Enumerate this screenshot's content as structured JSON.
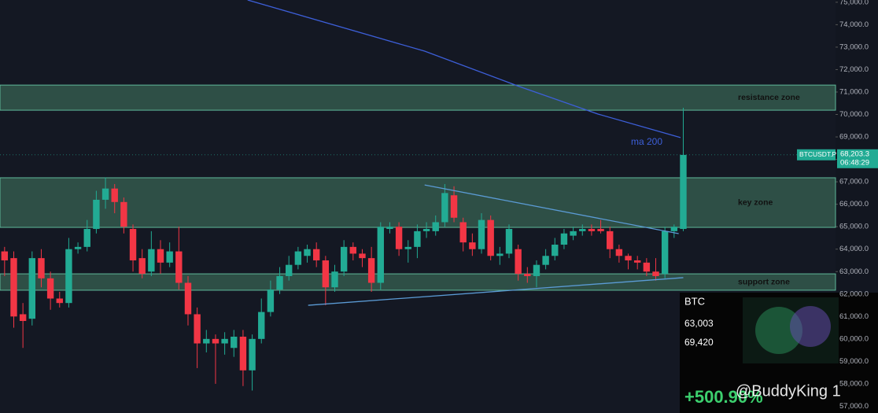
{
  "chart_data": {
    "type": "candlestick",
    "up_color": "#22ab94",
    "down_color": "#f23645",
    "open": [
      63900,
      63600,
      61100,
      60900,
      63600,
      62700,
      61800,
      61600,
      64000,
      64100,
      64900,
      66200,
      66700,
      66100,
      64900,
      63600,
      63000,
      64000,
      63400,
      63900,
      62500,
      61100,
      59800,
      60000,
      59800,
      59600,
      60100,
      58600,
      60000,
      61200,
      62200,
      62800,
      63300,
      63700,
      64000,
      63500,
      62300,
      63000,
      64100,
      63800,
      63600,
      62500,
      64900,
      65000,
      64000,
      64100,
      64800,
      64800,
      65200,
      66400,
      65200,
      64300,
      64000,
      65300,
      63700,
      63800,
      64000,
      62900,
      62800,
      63300,
      63700,
      64200,
      64600,
      64800,
      64900,
      64900,
      64800,
      64000,
      63700,
      63500,
      63400,
      63000,
      62900,
      64800,
      64900
    ],
    "high": [
      64100,
      63900,
      61600,
      63900,
      64000,
      63000,
      62100,
      64500,
      64300,
      65300,
      66600,
      67200,
      66900,
      66300,
      65100,
      64000,
      64800,
      64400,
      64300,
      65000,
      62800,
      61400,
      60400,
      60200,
      60300,
      60400,
      60400,
      60200,
      61800,
      62600,
      63200,
      63700,
      64100,
      64200,
      64300,
      63700,
      63300,
      64400,
      64300,
      64000,
      64100,
      65200,
      65200,
      65200,
      64400,
      65100,
      65200,
      65500,
      66900,
      66800,
      65400,
      64700,
      65600,
      65500,
      64100,
      65100,
      64200,
      63200,
      63500,
      64000,
      64500,
      64900,
      65000,
      65100,
      65100,
      65300,
      65000,
      64200,
      63800,
      63700,
      63600,
      63600,
      65000,
      65100,
      70300
    ],
    "low": [
      62800,
      60500,
      59600,
      60600,
      62300,
      61300,
      61400,
      61400,
      63800,
      63900,
      64700,
      65800,
      65600,
      64700,
      63000,
      62700,
      62800,
      62900,
      63200,
      62200,
      60600,
      58700,
      59400,
      58000,
      59300,
      59200,
      57900,
      57700,
      59800,
      61000,
      62000,
      62600,
      63100,
      63400,
      63200,
      61500,
      62100,
      62800,
      63500,
      63200,
      62100,
      62200,
      64700,
      63700,
      63400,
      63600,
      64500,
      64600,
      65000,
      65200,
      63900,
      63700,
      63800,
      63500,
      63300,
      63600,
      62600,
      62500,
      62300,
      63100,
      63500,
      64000,
      64400,
      64600,
      64600,
      64700,
      63600,
      63400,
      63100,
      63100,
      62800,
      62600,
      62700,
      64500,
      64800
    ],
    "close": [
      63500,
      61000,
      60800,
      63600,
      62700,
      61800,
      61600,
      64000,
      64100,
      64900,
      66200,
      66700,
      66100,
      65000,
      63500,
      62900,
      64000,
      63400,
      63900,
      62500,
      61100,
      59800,
      60000,
      59800,
      60000,
      60100,
      58600,
      60000,
      61200,
      62200,
      62800,
      63300,
      63900,
      64000,
      63500,
      62300,
      63000,
      64100,
      63800,
      63600,
      62500,
      65000,
      65000,
      64000,
      64100,
      64800,
      64900,
      65200,
      66500,
      65400,
      64300,
      64000,
      65300,
      63700,
      63800,
      64900,
      62900,
      62800,
      63300,
      63700,
      64200,
      64700,
      64800,
      64900,
      64800,
      64800,
      64000,
      63700,
      63500,
      63400,
      63000,
      62800,
      64800,
      65000,
      68200
    ],
    "xlim": [
      -0.5,
      90.6
    ],
    "ylim": [
      56700,
      75100
    ],
    "yticks": [
      {
        "value": 57000,
        "label": "57,000.0"
      },
      {
        "value": 58000,
        "label": "58,000.0"
      },
      {
        "value": 59000,
        "label": "59,000.0"
      },
      {
        "value": 60000,
        "label": "60,000.0"
      },
      {
        "value": 61000,
        "label": "61,000.0"
      },
      {
        "value": 62000,
        "label": "62,000.0"
      },
      {
        "value": 63000,
        "label": "63,000.0"
      },
      {
        "value": 64000,
        "label": "64,000.0"
      },
      {
        "value": 65000,
        "label": "65,000.0"
      },
      {
        "value": 66000,
        "label": "66,000.0"
      },
      {
        "value": 67000,
        "label": "67,000.0"
      },
      {
        "value": 68000,
        "label": "68,000.0"
      },
      {
        "value": 69000,
        "label": "69,000.0"
      },
      {
        "value": 70000,
        "label": "70,000.0"
      },
      {
        "value": 71000,
        "label": "71,000.0"
      },
      {
        "value": 72000,
        "label": "72,000.0"
      },
      {
        "value": 73000,
        "label": "73,000.0"
      },
      {
        "value": 74000,
        "label": "74,000.0"
      },
      {
        "value": 75000,
        "label": "75,000.0"
      }
    ],
    "zones": [
      {
        "label": "resistance zone",
        "low": 70190,
        "high": 71310
      },
      {
        "label": "key zone",
        "low": 64970,
        "high": 67180
      },
      {
        "label": "support zone",
        "low": 62170,
        "high": 62900
      }
    ],
    "ma": {
      "name": "ma 200",
      "color": "#3d5fd9",
      "x": [
        26.5,
        45.8,
        56.1,
        64.7,
        73.7
      ],
      "values": [
        75100,
        72820,
        71250,
        70020,
        68970
      ]
    },
    "trendlines": [
      {
        "color": "#5b9bd5",
        "x": [
          45.8,
          73.5
        ],
        "values": [
          66860,
          64690
        ]
      },
      {
        "color": "#5b9bd5",
        "x": [
          33.1,
          74.0
        ],
        "values": [
          61500,
          62730
        ]
      }
    ],
    "last_price": {
      "symbol": "BTCUSDT.P",
      "value": 68203.3,
      "label": "68,203.3",
      "countdown": "06:48:29"
    },
    "inset": {
      "title": "BTC",
      "prices": [
        "63,003",
        "69,420"
      ],
      "gain": "+500.90%",
      "watermark": "@BuddyKing 1"
    }
  }
}
